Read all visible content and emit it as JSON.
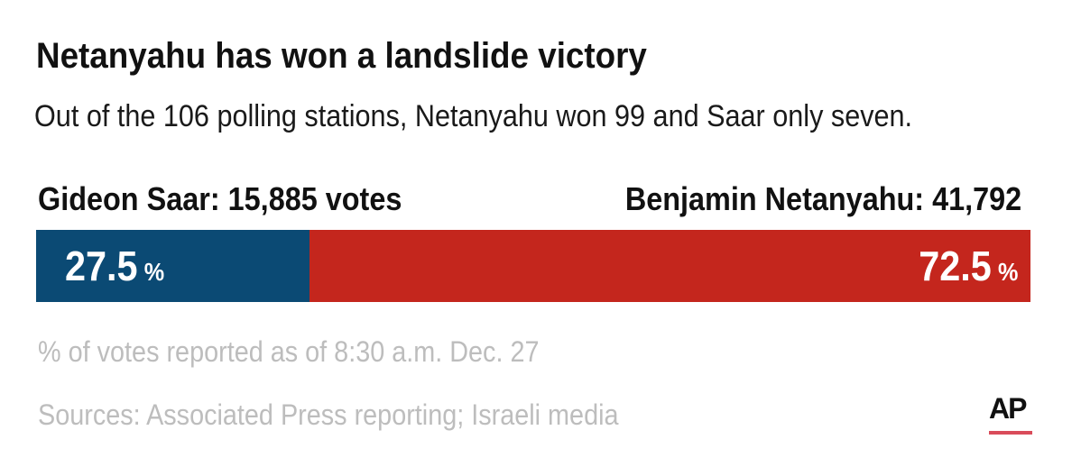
{
  "header": {
    "title": "Netanyahu has won a landslide victory",
    "subtitle": "Out of the 106 polling stations, Netanyahu won 99 and Saar only seven."
  },
  "chart_data": {
    "type": "bar",
    "stacked": true,
    "orientation": "horizontal",
    "title": "Netanyahu has won a landslide victory",
    "subtitle": "Out of the 106 polling stations, Netanyahu won 99 and Saar only seven.",
    "series": [
      {
        "label": "Gideon Saar: 15,885 votes",
        "votes": 15885,
        "percent": 27.5,
        "percent_label": "27.5",
        "color": "#0b4a74"
      },
      {
        "label": "Benjamin Netanyahu: 41,792",
        "votes": 41792,
        "percent": 72.5,
        "percent_label": "72.5",
        "color": "#c4261d"
      }
    ],
    "unit": "%",
    "grid": false
  },
  "notes": {
    "reported": "% of votes reported as of 8:30 a.m. Dec. 27",
    "sources": "Sources: Associated Press reporting; Israeli media"
  },
  "logo": {
    "text": "AP",
    "accent_color": "#d94b5a"
  }
}
